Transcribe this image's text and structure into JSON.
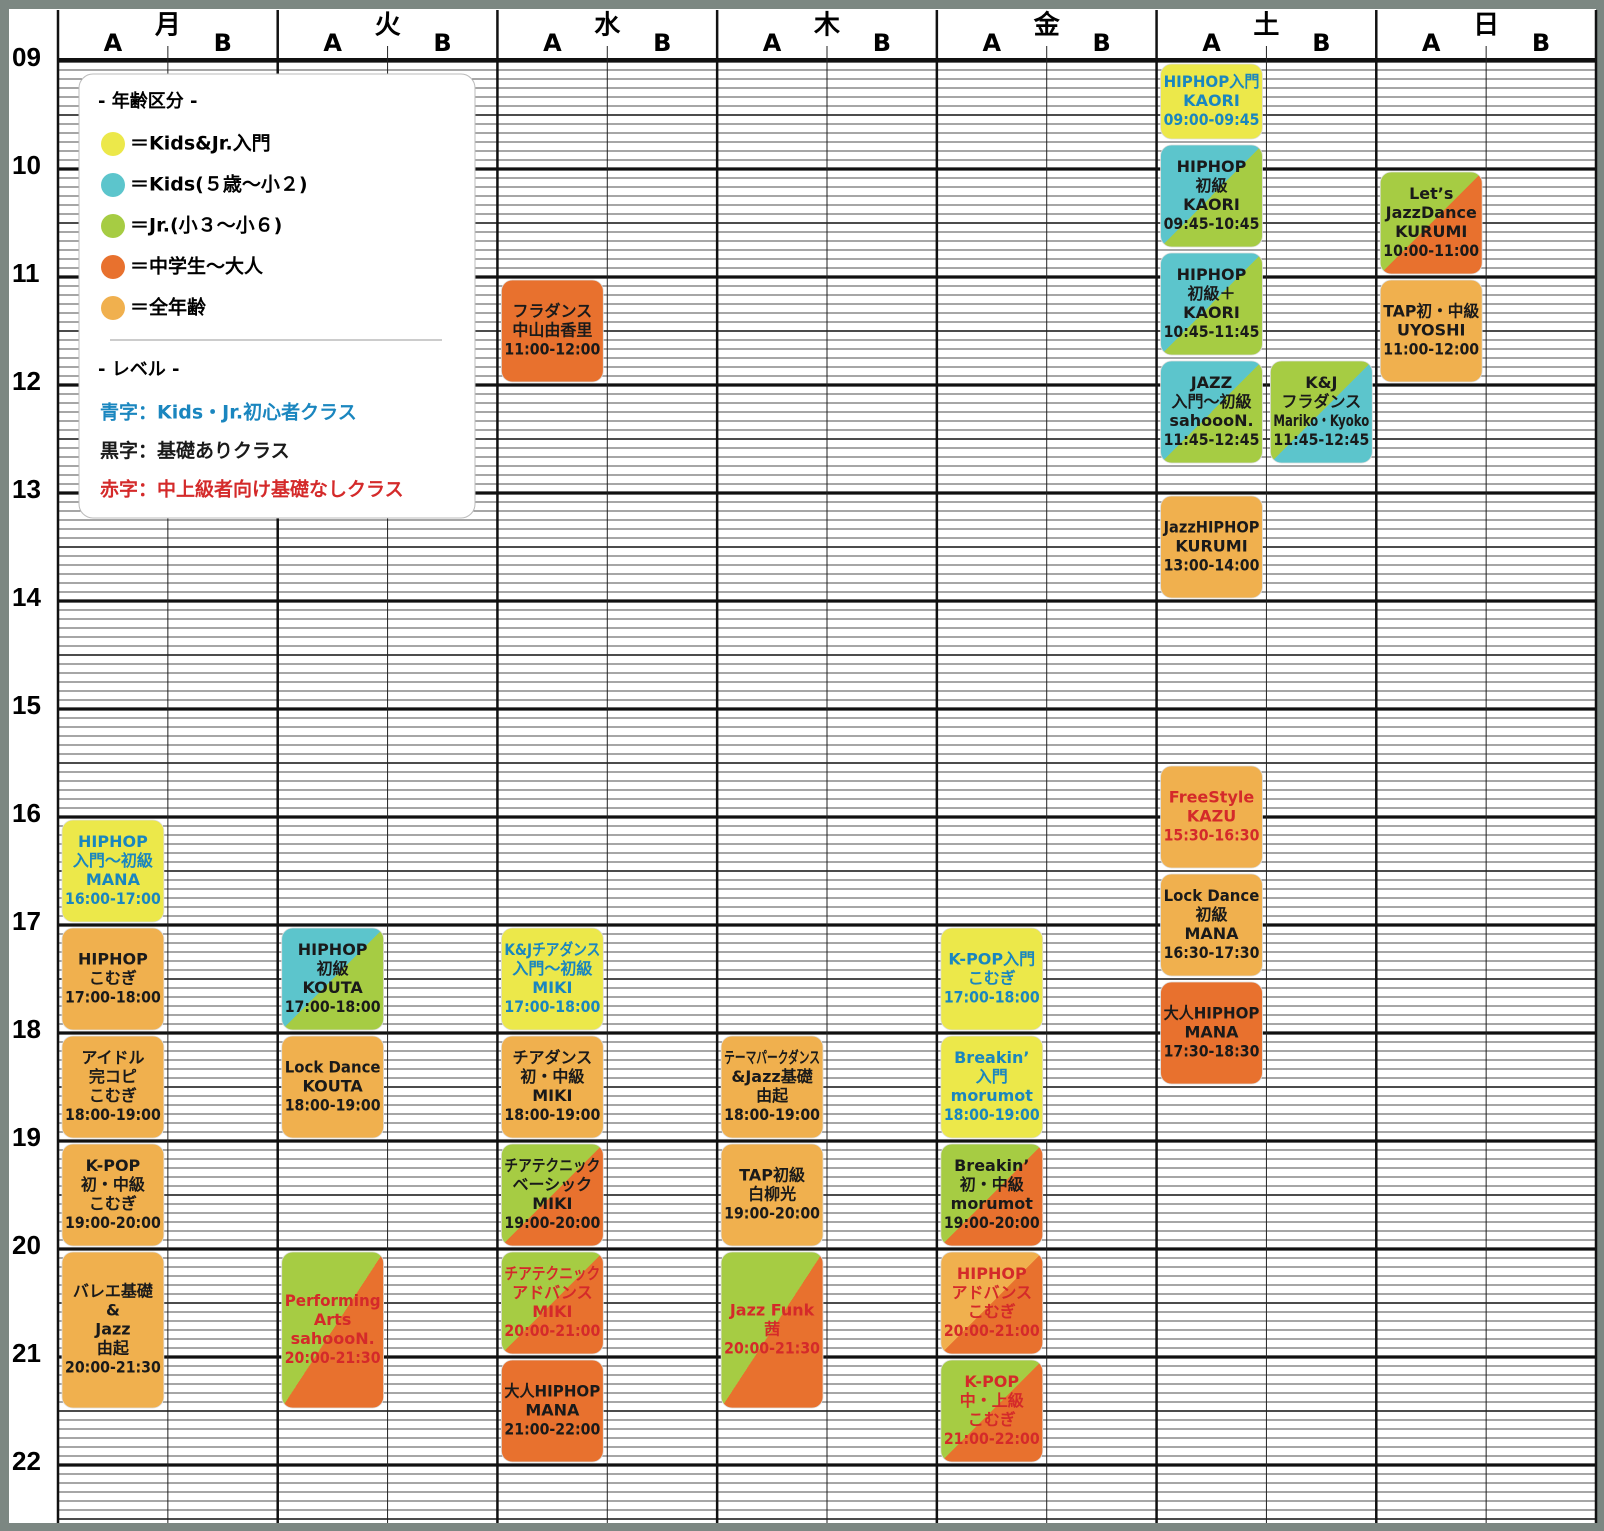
{
  "days": [
    {
      "name": "月",
      "rooms": [
        "A",
        "B"
      ],
      "classes": [
        {
          "room": "A",
          "lines": [
            "HIPHOP",
            "入門〜初級",
            "MANA"
          ],
          "time": "16:00-17:00",
          "colors": [
            "#ece84a"
          ],
          "text_color": "#1a86bf"
        },
        {
          "room": "A",
          "lines": [
            "HIPHOP",
            "こむぎ"
          ],
          "time": "17:00-18:00",
          "colors": [
            "#f0b04e"
          ],
          "text_color": "#1a1a1a"
        },
        {
          "room": "A",
          "lines": [
            "アイドル",
            "完コピ",
            "こむぎ"
          ],
          "time": "18:00-19:00",
          "colors": [
            "#f0b04e"
          ],
          "text_color": "#1a1a1a"
        },
        {
          "room": "A",
          "lines": [
            "K-POP",
            "初・中級",
            "こむぎ"
          ],
          "time": "19:00-20:00",
          "colors": [
            "#f0b04e"
          ],
          "text_color": "#1a1a1a"
        },
        {
          "room": "A",
          "lines": [
            "バレエ基礎",
            "&",
            "Jazz",
            "由起"
          ],
          "time": "20:00-21:30",
          "colors": [
            "#f0b04e"
          ],
          "text_color": "#1a1a1a"
        }
      ]
    },
    {
      "name": "火",
      "rooms": [
        "A",
        "B"
      ],
      "classes": [
        {
          "room": "A",
          "lines": [
            "HIPHOP",
            "初級",
            "KOUTA"
          ],
          "time": "17:00-18:00",
          "colors": [
            "#5cc5cc",
            "#a6cc43"
          ],
          "text_color": "#1a1a1a"
        },
        {
          "room": "A",
          "lines": [
            "Lock Dance",
            "KOUTA"
          ],
          "time": "18:00-19:00",
          "colors": [
            "#f0b04e"
          ],
          "text_color": "#1a1a1a"
        },
        {
          "room": "A",
          "lines": [
            "Performing",
            "Arts",
            "sahoooN."
          ],
          "time": "20:00-21:30",
          "colors": [
            "#a6cc43",
            "#e8712e"
          ],
          "text_color": "#d42a2a"
        }
      ]
    },
    {
      "name": "水",
      "rooms": [
        "A",
        "B"
      ],
      "classes": [
        {
          "room": "A",
          "lines": [
            "フラダンス",
            "中山由香里"
          ],
          "time": "11:00-12:00",
          "colors": [
            "#e8712e"
          ],
          "text_color": "#1a1a1a"
        },
        {
          "room": "A",
          "lines": [
            "K&Jチアダンス",
            "入門〜初級",
            "MIKI"
          ],
          "time": "17:00-18:00",
          "colors": [
            "#ece84a"
          ],
          "text_color": "#1a86bf"
        },
        {
          "room": "A",
          "lines": [
            "チアダンス",
            "初・中級",
            "MIKI"
          ],
          "time": "18:00-19:00",
          "colors": [
            "#f0b04e"
          ],
          "text_color": "#1a1a1a"
        },
        {
          "room": "A",
          "lines": [
            "チアテクニック",
            "ベーシック",
            "MIKI"
          ],
          "time": "19:00-20:00",
          "colors": [
            "#a6cc43",
            "#e8712e"
          ],
          "text_color": "#1a1a1a"
        },
        {
          "room": "A",
          "lines": [
            "チアテクニック",
            "アドバンス",
            "MIKI"
          ],
          "time": "20:00-21:00",
          "colors": [
            "#a6cc43",
            "#e8712e"
          ],
          "text_color": "#d42a2a"
        },
        {
          "room": "A",
          "lines": [
            "大人HIPHOP",
            "MANA"
          ],
          "time": "21:00-22:00",
          "colors": [
            "#e8712e"
          ],
          "text_color": "#1a1a1a"
        }
      ]
    },
    {
      "name": "木",
      "rooms": [
        "A",
        "B"
      ],
      "classes": [
        {
          "room": "A",
          "lines": [
            "テーマパークダンス",
            "&Jazz基礎",
            "由起"
          ],
          "time": "18:00-19:00",
          "colors": [
            "#f0b04e"
          ],
          "text_color": "#1a1a1a"
        },
        {
          "room": "A",
          "lines": [
            "TAP初級",
            "白柳光"
          ],
          "time": "19:00-20:00",
          "colors": [
            "#f0b04e"
          ],
          "text_color": "#1a1a1a"
        },
        {
          "room": "A",
          "lines": [
            "Jazz Funk",
            "茜"
          ],
          "time": "20:00-21:30",
          "colors": [
            "#a6cc43",
            "#e8712e"
          ],
          "text_color": "#d42a2a"
        }
      ]
    },
    {
      "name": "金",
      "rooms": [
        "A",
        "B"
      ],
      "classes": [
        {
          "room": "A",
          "lines": [
            "K-POP入門",
            "こむぎ"
          ],
          "time": "17:00-18:00",
          "colors": [
            "#ece84a"
          ],
          "text_color": "#1a86bf"
        },
        {
          "room": "A",
          "lines": [
            "Breakin’",
            "入門",
            "morumot"
          ],
          "time": "18:00-19:00",
          "colors": [
            "#ece84a"
          ],
          "text_color": "#1a86bf"
        },
        {
          "room": "A",
          "lines": [
            "Breakin’",
            "初・中級",
            "morumot"
          ],
          "time": "19:00-20:00",
          "colors": [
            "#a6cc43",
            "#e8712e"
          ],
          "text_color": "#1a1a1a"
        },
        {
          "room": "A",
          "lines": [
            "HIPHOP",
            "アドバンス",
            "こむぎ"
          ],
          "time": "20:00-21:00",
          "colors": [
            "#f0b04e",
            "#e8712e"
          ],
          "text_color": "#d42a2a"
        },
        {
          "room": "A",
          "lines": [
            "K-POP",
            "中・上級",
            "こむぎ"
          ],
          "time": "21:00-22:00",
          "colors": [
            "#a6cc43",
            "#e8712e"
          ],
          "text_color": "#d42a2a"
        }
      ]
    },
    {
      "name": "土",
      "rooms": [
        "A",
        "B"
      ],
      "classes": [
        {
          "room": "A",
          "lines": [
            "HIPHOP入門",
            "KAORI"
          ],
          "time": "09:00-09:45",
          "colors": [
            "#ece84a"
          ],
          "text_color": "#1a86bf"
        },
        {
          "room": "A",
          "lines": [
            "HIPHOP",
            "初級",
            "KAORI"
          ],
          "time": "09:45-10:45",
          "colors": [
            "#5cc5cc",
            "#a6cc43"
          ],
          "text_color": "#1a1a1a"
        },
        {
          "room": "A",
          "lines": [
            "HIPHOP",
            "初級＋",
            "KAORI"
          ],
          "time": "10:45-11:45",
          "colors": [
            "#5cc5cc",
            "#a6cc43"
          ],
          "text_color": "#1a1a1a"
        },
        {
          "room": "A",
          "lines": [
            "JAZZ",
            "入門〜初級",
            "sahoooN."
          ],
          "time": "11:45-12:45",
          "colors": [
            "#5cc5cc",
            "#a6cc43"
          ],
          "text_color": "#1a1a1a"
        },
        {
          "room": "B",
          "lines": [
            "K&J",
            "フラダンス",
            "Mariko・Kyoko"
          ],
          "time": "11:45-12:45",
          "colors": [
            "#a6cc43",
            "#5cc5cc"
          ],
          "text_color": "#1a1a1a"
        },
        {
          "room": "A",
          "lines": [
            "JazzHIPHOP",
            "KURUMI"
          ],
          "time": "13:00-14:00",
          "colors": [
            "#f0b04e"
          ],
          "text_color": "#1a1a1a"
        },
        {
          "room": "A",
          "lines": [
            "FreeStyle",
            "KAZU"
          ],
          "time": "15:30-16:30",
          "colors": [
            "#f0b04e"
          ],
          "text_color": "#d42a2a"
        },
        {
          "room": "A",
          "lines": [
            "Lock Dance",
            "初級",
            "MANA"
          ],
          "time": "16:30-17:30",
          "colors": [
            "#f0b04e"
          ],
          "text_color": "#1a1a1a"
        },
        {
          "room": "A",
          "lines": [
            "大人HIPHOP",
            "MANA"
          ],
          "time": "17:30-18:30",
          "colors": [
            "#e8712e"
          ],
          "text_color": "#1a1a1a"
        }
      ]
    },
    {
      "name": "日",
      "rooms": [
        "A",
        "B"
      ],
      "classes": [
        {
          "room": "A",
          "lines": [
            "Let’s",
            "JazzDance",
            "KURUMI"
          ],
          "time": "10:00-11:00",
          "colors": [
            "#a6cc43",
            "#e8712e"
          ],
          "text_color": "#1a1a1a"
        },
        {
          "room": "A",
          "lines": [
            "TAP初・中級",
            "UYOSHI"
          ],
          "time": "11:00-12:00",
          "colors": [
            "#f0b04e"
          ],
          "text_color": "#1a1a1a"
        }
      ]
    }
  ],
  "hours": [
    "09",
    "10",
    "11",
    "12",
    "13",
    "14",
    "15",
    "16",
    "17",
    "18",
    "19",
    "20",
    "21",
    "22"
  ],
  "legend": {
    "age_title": "- 年齢区分 -",
    "age_items": [
      {
        "color": "#ece84a",
        "label": "＝Kids&Jr.入門"
      },
      {
        "color": "#5cc5cc",
        "label": "＝Kids(５歳〜小２)"
      },
      {
        "color": "#a6cc43",
        "label": "＝Jr.(小３〜小６)"
      },
      {
        "color": "#e8712e",
        "label": "＝中学生〜大人"
      },
      {
        "color": "#f0b04e",
        "label": "＝全年齢"
      }
    ],
    "level_title": "- レベル -",
    "level_items": [
      {
        "color": "#1a86bf",
        "label": "青字：Kids・Jr.初心者クラス"
      },
      {
        "color": "#1a1a1a",
        "label": "黒字：基礎ありクラス"
      },
      {
        "color": "#d42a2a",
        "label": "赤字：中上級者向け基礎なしクラス"
      }
    ]
  }
}
